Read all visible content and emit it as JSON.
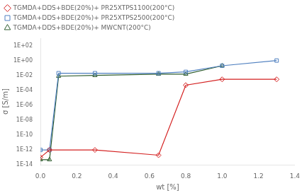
{
  "chart_data": {
    "type": "line",
    "x_label": "wt [%]",
    "y_label": "σ [S/m]",
    "log": "y",
    "grid": false,
    "legend": "upper left",
    "xlim": [
      0.0,
      1.4
    ],
    "ylim": [
      1e-14,
      1000.0
    ],
    "xticks": [
      {
        "value": 0.0,
        "label": "0.0"
      },
      {
        "value": 0.2,
        "label": "0.2"
      },
      {
        "value": 0.4,
        "label": "0.4"
      },
      {
        "value": 0.6,
        "label": "0.6"
      },
      {
        "value": 0.8,
        "label": "0.8"
      },
      {
        "value": 1.0,
        "label": "1.0"
      },
      {
        "value": 1.2,
        "label": "1.2"
      },
      {
        "value": 1.4,
        "label": "1.4"
      }
    ],
    "yticks": [
      {
        "value": 1e-14,
        "label": "1E-14"
      },
      {
        "value": 1e-12,
        "label": "1E-12"
      },
      {
        "value": 1e-10,
        "label": "1E-10"
      },
      {
        "value": 1e-08,
        "label": "1E-08"
      },
      {
        "value": 1e-06,
        "label": "1E-06"
      },
      {
        "value": 0.0001,
        "label": "1E-04"
      },
      {
        "value": 0.01,
        "label": "1E-02"
      },
      {
        "value": 1,
        "label": "1E+00"
      },
      {
        "value": 100,
        "label": "1E+02"
      }
    ],
    "series": [
      {
        "name": "TGMDA+DDS+BDE(20%)+ PR25XTPS1100(200°C)",
        "color": "#d42020",
        "marker": "diamond",
        "x": [
          0.0,
          0.05,
          0.3,
          0.65,
          0.8,
          1.0,
          1.3
        ],
        "values": [
          1e-13,
          1e-12,
          1e-12,
          2e-13,
          0.0005,
          0.003,
          0.003
        ]
      },
      {
        "name": "TGMDA+DDS+BDE(20%)+ PR25XTPS2500(200°C)",
        "color": "#5080c0",
        "marker": "square",
        "x": [
          0.0,
          0.05,
          0.1,
          0.3,
          0.65,
          0.8,
          1.0,
          1.3
        ],
        "values": [
          1e-12,
          1e-12,
          0.02,
          0.02,
          0.02,
          0.03,
          0.2,
          1.0
        ]
      },
      {
        "name": "TGMDA+DDS+BDE(20%)+ MWCNT(200°C)",
        "color": "#2d5c2d",
        "marker": "triangle",
        "x": [
          0.0,
          0.05,
          0.1,
          0.3,
          0.65,
          0.8,
          1.0
        ],
        "values": [
          5e-14,
          5e-14,
          0.008,
          0.01,
          0.015,
          0.015,
          0.2
        ]
      }
    ]
  }
}
